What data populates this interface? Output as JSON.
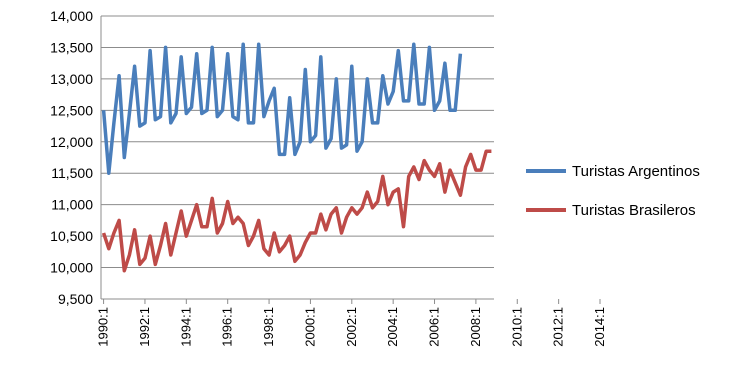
{
  "chart_data": {
    "type": "line",
    "title": "",
    "xlabel": "",
    "ylabel": "",
    "ylim": [
      9500,
      14000
    ],
    "yticks": [
      "9,500",
      "10,000",
      "10,500",
      "11,000",
      "11,500",
      "12,000",
      "12,500",
      "13,000",
      "13,500",
      "14,000"
    ],
    "ytick_values": [
      9500,
      10000,
      10500,
      11000,
      11500,
      12000,
      12500,
      13000,
      13500,
      14000
    ],
    "xticks": [
      "1990:1",
      "1992:1",
      "1994:1",
      "1996:1",
      "1998:1",
      "2000:1",
      "2002:1",
      "2004:1",
      "2006:1",
      "2008:1",
      "2010:1",
      "2012:1",
      "2014:1"
    ],
    "grid": "horizontal",
    "legend_position": "right",
    "colors": {
      "argentinos": "#4a7ebb",
      "brasileros": "#be4b48"
    },
    "series": [
      {
        "name": "Turistas Argentinos",
        "color": "#4a7ebb",
        "values": [
          12500,
          11500,
          12300,
          13050,
          11750,
          12450,
          13200,
          12250,
          12300,
          13450,
          12350,
          12400,
          13500,
          12300,
          12450,
          13350,
          12450,
          12550,
          13400,
          12450,
          12500,
          13500,
          12400,
          12500,
          13400,
          12400,
          12350,
          13550,
          12300,
          12300,
          13550,
          12400,
          12650,
          12850,
          11800,
          11800,
          12700,
          11800,
          12000,
          13150,
          12000,
          12100,
          13350,
          11900,
          12050,
          13000,
          11900,
          11950,
          13200,
          11850,
          12000,
          13000,
          12300,
          12300,
          13050,
          12600,
          12800,
          13450,
          12650,
          12650,
          13550,
          12600,
          12600,
          13500,
          12500,
          12650,
          13250,
          12500,
          12500,
          13400
        ]
      },
      {
        "name": "Turistas Brasileros",
        "color": "#be4b48",
        "values": [
          10550,
          10300,
          10550,
          10750,
          9950,
          10200,
          10600,
          10050,
          10150,
          10500,
          10050,
          10350,
          10700,
          10200,
          10550,
          10900,
          10500,
          10750,
          11000,
          10650,
          10650,
          11100,
          10550,
          10700,
          11050,
          10700,
          10800,
          10700,
          10350,
          10500,
          10750,
          10300,
          10200,
          10550,
          10250,
          10350,
          10500,
          10100,
          10200,
          10400,
          10550,
          10550,
          10850,
          10600,
          10850,
          10950,
          10550,
          10800,
          10950,
          10850,
          10950,
          11200,
          10950,
          11050,
          11450,
          11000,
          11200,
          11250,
          10650,
          11450,
          11600,
          11400,
          11700,
          11550,
          11450,
          11650,
          11200,
          11550,
          11350,
          11150,
          11600,
          11800,
          11550,
          11550,
          11850,
          11850
        ]
      }
    ]
  }
}
